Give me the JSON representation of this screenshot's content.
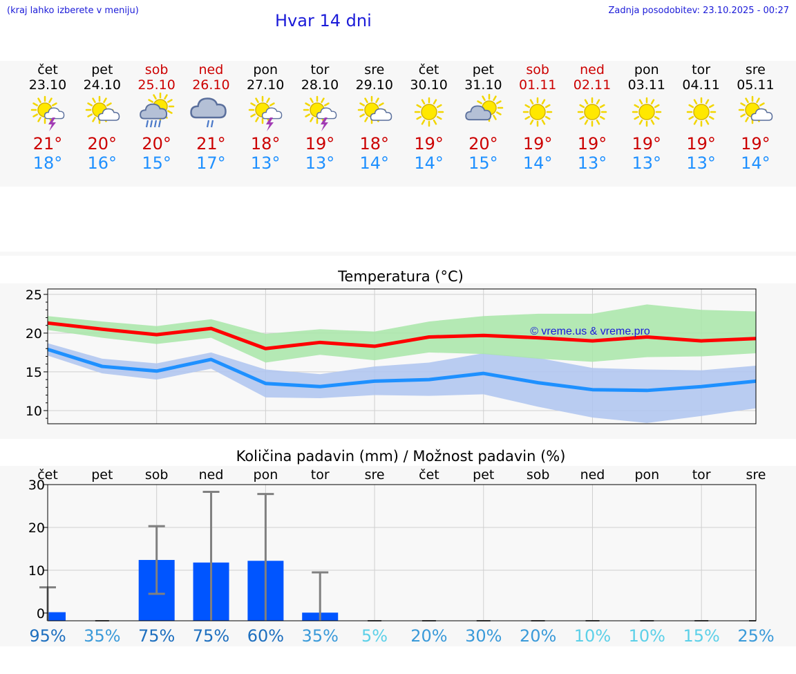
{
  "header": {
    "left_note": "(kraj lahko izberete v meniju)",
    "title": "Hvar 14 dni",
    "updated": "Zadnja posodobitev: 23.10.2025 - 00:27"
  },
  "colors": {
    "link_blue": "#1a1ad8",
    "weekend_red": "#cc0000",
    "max_red": "#ff0000",
    "min_blue": "#1e90ff",
    "max_band": "#a8e6a8",
    "min_band": "#aec4f0",
    "bar_blue": "#0055ff"
  },
  "days": [
    {
      "name": "čet",
      "date": "23.10",
      "weekend": false,
      "icon": "sun-cloud-thunder-icon",
      "tmax": "21°",
      "tmin": "18°"
    },
    {
      "name": "pet",
      "date": "24.10",
      "weekend": false,
      "icon": "sun-cloud-icon",
      "tmax": "20°",
      "tmin": "16°"
    },
    {
      "name": "sob",
      "date": "25.10",
      "weekend": true,
      "icon": "sun-cloud-rain-icon",
      "tmax": "20°",
      "tmin": "15°"
    },
    {
      "name": "ned",
      "date": "26.10",
      "weekend": true,
      "icon": "cloud-rain-icon",
      "tmax": "21°",
      "tmin": "17°"
    },
    {
      "name": "pon",
      "date": "27.10",
      "weekend": false,
      "icon": "sun-cloud-thunder-icon",
      "tmax": "18°",
      "tmin": "13°"
    },
    {
      "name": "tor",
      "date": "28.10",
      "weekend": false,
      "icon": "sun-cloud-thunder-icon",
      "tmax": "19°",
      "tmin": "13°"
    },
    {
      "name": "sre",
      "date": "29.10",
      "weekend": false,
      "icon": "sun-cloud-icon",
      "tmax": "18°",
      "tmin": "14°"
    },
    {
      "name": "čet",
      "date": "30.10",
      "weekend": false,
      "icon": "sun-icon",
      "tmax": "19°",
      "tmin": "14°"
    },
    {
      "name": "pet",
      "date": "31.10",
      "weekend": false,
      "icon": "cloud-sun-icon",
      "tmax": "20°",
      "tmin": "15°"
    },
    {
      "name": "sob",
      "date": "01.11",
      "weekend": true,
      "icon": "sun-icon",
      "tmax": "19°",
      "tmin": "14°"
    },
    {
      "name": "ned",
      "date": "02.11",
      "weekend": true,
      "icon": "sun-icon",
      "tmax": "19°",
      "tmin": "13°"
    },
    {
      "name": "pon",
      "date": "03.11",
      "weekend": false,
      "icon": "sun-icon",
      "tmax": "19°",
      "tmin": "13°"
    },
    {
      "name": "tor",
      "date": "04.11",
      "weekend": false,
      "icon": "sun-icon",
      "tmax": "19°",
      "tmin": "13°"
    },
    {
      "name": "sre",
      "date": "05.11",
      "weekend": false,
      "icon": "sun-cloud-icon",
      "tmax": "19°",
      "tmin": "14°"
    }
  ],
  "chart_data": [
    {
      "type": "line",
      "title": "Temperatura (°C)",
      "watermark": "© vreme.us & vreme.pro",
      "x": [
        0,
        1,
        2,
        3,
        4,
        5,
        6,
        7,
        8,
        9,
        10,
        11,
        12,
        13
      ],
      "ylim": [
        8.3,
        25.7
      ],
      "yticks": [
        10,
        15,
        20,
        25
      ],
      "grid": true,
      "series": [
        {
          "values": [
            21.3,
            20.5,
            19.8,
            20.6,
            18.0,
            18.8,
            18.3,
            19.5,
            19.7,
            19.4,
            19.0,
            19.5,
            19.0,
            19.3
          ],
          "band_high": [
            22.2,
            21.5,
            20.9,
            21.8,
            19.9,
            20.5,
            20.2,
            21.5,
            22.2,
            22.5,
            22.5,
            23.7,
            23.0,
            22.8
          ],
          "band_low": [
            20.4,
            19.4,
            18.6,
            19.4,
            16.2,
            17.2,
            16.5,
            17.5,
            17.3,
            16.7,
            16.3,
            16.9,
            17.0,
            17.4
          ]
        },
        {
          "values": [
            17.9,
            15.7,
            15.1,
            16.6,
            13.5,
            13.1,
            13.8,
            14.0,
            14.8,
            13.6,
            12.7,
            12.6,
            13.1,
            13.8
          ],
          "band_high": [
            18.7,
            16.7,
            16.1,
            17.5,
            15.3,
            14.7,
            15.7,
            16.2,
            17.4,
            16.8,
            15.5,
            15.3,
            15.2,
            15.8
          ],
          "band_low": [
            17.1,
            14.8,
            14.0,
            15.4,
            11.7,
            11.6,
            12.0,
            11.9,
            12.1,
            10.5,
            9.1,
            8.4,
            9.3,
            10.3
          ]
        }
      ]
    },
    {
      "type": "bar",
      "title": "Količina padavin (mm) / Možnost padavin (%)",
      "categories": [
        "čet",
        "pet",
        "sob",
        "ned",
        "pon",
        "tor",
        "sre",
        "čet",
        "pet",
        "sob",
        "ned",
        "pon",
        "tor",
        "sre"
      ],
      "values": [
        0.2,
        0,
        12.4,
        11.8,
        12.2,
        0.1,
        0,
        0,
        0,
        0,
        0,
        0,
        0,
        0
      ],
      "error_high": [
        6.0,
        0,
        20.3,
        28.3,
        27.8,
        9.5,
        0,
        0,
        0,
        0,
        0,
        0,
        0,
        0
      ],
      "error_low": [
        0,
        0,
        4.5,
        0,
        0,
        0,
        0,
        0,
        0,
        0,
        0,
        0,
        0,
        0
      ],
      "ylim": [
        -1.8,
        30
      ],
      "yticks": [
        0,
        10,
        20,
        30
      ],
      "probability": [
        "95%",
        "35%",
        "75%",
        "75%",
        "60%",
        "35%",
        "5%",
        "20%",
        "30%",
        "20%",
        "10%",
        "10%",
        "15%",
        "25%"
      ],
      "probability_values": [
        95,
        35,
        75,
        75,
        60,
        35,
        5,
        20,
        30,
        20,
        10,
        10,
        15,
        25
      ],
      "grid": true
    }
  ]
}
